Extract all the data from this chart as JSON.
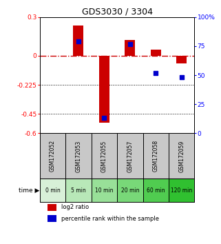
{
  "title": "GDS3030 / 3304",
  "samples": [
    "GSM172052",
    "GSM172053",
    "GSM172055",
    "GSM172057",
    "GSM172058",
    "GSM172059"
  ],
  "times": [
    "0 min",
    "5 min",
    "10 min",
    "20 min",
    "60 min",
    "120 min"
  ],
  "log2_ratio": [
    0.0,
    0.235,
    -0.52,
    0.12,
    0.05,
    -0.06
  ],
  "percentile_rank": [
    null,
    79,
    13,
    77,
    52,
    48
  ],
  "left_ylim": [
    -0.6,
    0.3
  ],
  "right_ylim": [
    0,
    100
  ],
  "left_yticks": [
    0.3,
    0.0,
    -0.225,
    -0.45,
    -0.6
  ],
  "left_yticklabels": [
    "0.3",
    "0",
    "-0.225",
    "-0.45",
    "-0.6"
  ],
  "right_yticks": [
    100,
    75,
    50,
    25,
    0
  ],
  "right_yticklabels": [
    "100%",
    "75",
    "50",
    "25",
    "0"
  ],
  "dotted_lines": [
    -0.225,
    -0.45
  ],
  "bar_color": "#cc0000",
  "dot_color": "#0000cc",
  "zero_line_color": "#cc0000",
  "bar_width": 0.4,
  "dot_size": 25,
  "legend_bar_label": "log2 ratio",
  "legend_dot_label": "percentile rank within the sample",
  "sample_bg": "#c8c8c8",
  "time_colors": [
    "#d8f0d8",
    "#b8e8b8",
    "#98e098",
    "#78d878",
    "#50cc50",
    "#30c030"
  ]
}
